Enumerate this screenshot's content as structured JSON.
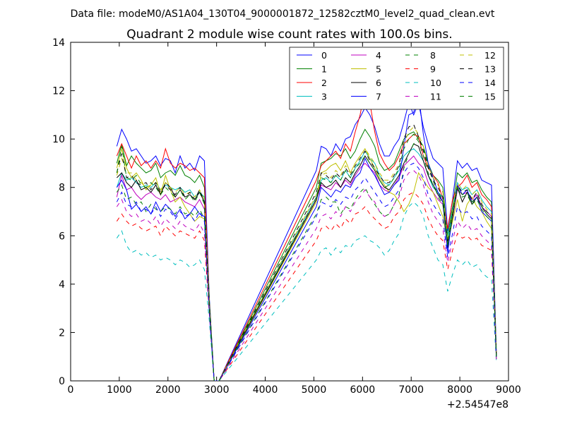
{
  "figure": {
    "suptitle": "Data file: modeM0/AS1A04_130T04_9000001872_12582cztM0_level2_quad_clean.evt"
  },
  "chart_data": {
    "type": "line",
    "title": "Quadrant 2 module wise count rates with 100.0s bins.",
    "xlabel": "",
    "ylabel": "",
    "x_offset_label": "+2.54547e8",
    "xlim": [
      0,
      9000
    ],
    "ylim": [
      0,
      14
    ],
    "x_ticks": [
      0,
      1000,
      2000,
      3000,
      4000,
      5000,
      6000,
      7000,
      8000,
      9000
    ],
    "y_ticks": [
      0,
      2,
      4,
      6,
      8,
      10,
      12,
      14
    ],
    "grid": false,
    "legend_placement": "top-right",
    "legend_columns": 4,
    "x": [
      950,
      1050,
      1150,
      1250,
      1350,
      1450,
      1550,
      1650,
      1750,
      1850,
      1950,
      2050,
      2150,
      2250,
      2350,
      2450,
      2550,
      2650,
      2750,
      2850,
      2950,
      3050,
      5050,
      5150,
      5250,
      5350,
      5450,
      5550,
      5650,
      5750,
      5850,
      5950,
      6050,
      6150,
      6250,
      6350,
      6450,
      6550,
      6650,
      6750,
      6850,
      6950,
      7050,
      7150,
      7250,
      7350,
      7450,
      7550,
      7650,
      7750,
      7850,
      7950,
      8050,
      8150,
      8250,
      8350,
      8450,
      8550,
      8650,
      8750
    ],
    "series": [
      {
        "name": "0",
        "color": "#0000ff",
        "dash": "solid",
        "values": [
          9.7,
          10.4,
          10.0,
          9.5,
          9.6,
          9.3,
          9.0,
          9.1,
          9.3,
          8.9,
          9.2,
          9.1,
          8.6,
          9.3,
          8.8,
          9.0,
          8.7,
          9.3,
          9.1,
          3.5,
          0.0,
          0.0,
          8.7,
          9.7,
          9.6,
          9.3,
          9.8,
          9.5,
          10.0,
          10.1,
          10.6,
          10.9,
          11.3,
          11.0,
          10.5,
          9.8,
          9.3,
          9.3,
          9.7,
          10.0,
          10.7,
          11.5,
          11.0,
          11.5,
          10.5,
          9.8,
          9.2,
          9.0,
          8.8,
          6.2,
          7.5,
          9.1,
          8.8,
          9.0,
          8.7,
          8.8,
          8.3,
          8.2,
          8.1,
          1.2
        ]
      },
      {
        "name": "1",
        "color": "#008000",
        "dash": "solid",
        "values": [
          9.0,
          9.8,
          8.9,
          9.3,
          9.0,
          8.8,
          8.6,
          8.7,
          9.0,
          8.4,
          8.6,
          8.7,
          8.5,
          8.9,
          8.5,
          8.4,
          8.2,
          8.5,
          8.0,
          3.4,
          0.0,
          0.0,
          8.0,
          9.0,
          9.1,
          9.2,
          9.4,
          9.3,
          9.6,
          9.2,
          9.5,
          10.0,
          10.4,
          10.1,
          9.7,
          9.0,
          8.7,
          8.8,
          9.0,
          9.5,
          10.0,
          10.2,
          10.3,
          10.0,
          9.7,
          9.0,
          8.5,
          8.3,
          8.0,
          6.0,
          7.2,
          8.6,
          8.4,
          8.6,
          8.2,
          8.3,
          7.9,
          7.6,
          7.4,
          1.1
        ]
      },
      {
        "name": "2",
        "color": "#ff0000",
        "dash": "solid",
        "values": [
          9.3,
          9.8,
          9.3,
          8.8,
          9.3,
          8.9,
          9.1,
          8.8,
          9.1,
          8.8,
          9.6,
          9.0,
          8.8,
          9.0,
          8.9,
          8.7,
          8.8,
          8.6,
          8.4,
          3.3,
          0.0,
          0.0,
          8.3,
          8.9,
          9.1,
          9.3,
          9.5,
          9.2,
          9.8,
          9.5,
          10.3,
          11.0,
          12.1,
          11.5,
          10.3,
          9.4,
          9.0,
          8.7,
          8.9,
          9.3,
          9.8,
          10.0,
          10.2,
          10.1,
          9.3,
          8.8,
          8.5,
          8.2,
          7.5,
          6.3,
          7.5,
          8.0,
          8.2,
          8.5,
          8.0,
          8.2,
          7.7,
          7.5,
          7.2,
          1.1
        ]
      },
      {
        "name": "3",
        "color": "#00bfbf",
        "dash": "solid",
        "values": [
          8.0,
          8.6,
          8.3,
          8.4,
          8.2,
          8.0,
          8.1,
          8.0,
          8.2,
          7.9,
          8.1,
          8.0,
          7.9,
          8.0,
          7.8,
          7.9,
          7.6,
          7.8,
          7.6,
          3.2,
          0.0,
          0.0,
          7.6,
          8.3,
          8.4,
          8.2,
          8.5,
          8.3,
          8.7,
          8.4,
          8.8,
          9.1,
          9.5,
          9.2,
          9.0,
          8.5,
          8.2,
          8.1,
          8.4,
          8.7,
          9.3,
          9.5,
          9.6,
          9.4,
          9.1,
          8.5,
          8.0,
          7.8,
          7.6,
          5.9,
          7.0,
          8.2,
          7.9,
          8.0,
          7.7,
          7.9,
          7.5,
          7.2,
          7.0,
          1.0
        ]
      },
      {
        "name": "4",
        "color": "#bf00bf",
        "dash": "solid",
        "values": [
          7.6,
          8.5,
          7.9,
          8.0,
          7.7,
          7.5,
          7.7,
          7.8,
          7.6,
          7.5,
          7.7,
          7.4,
          7.5,
          7.6,
          7.4,
          7.3,
          7.2,
          7.5,
          7.1,
          3.1,
          0.0,
          0.0,
          7.5,
          8.1,
          8.0,
          7.9,
          8.2,
          8.0,
          8.3,
          8.1,
          8.5,
          8.8,
          9.0,
          8.8,
          8.6,
          8.1,
          7.9,
          7.8,
          8.1,
          8.4,
          8.9,
          9.1,
          9.3,
          9.0,
          8.8,
          8.2,
          7.8,
          7.5,
          7.3,
          5.6,
          6.7,
          7.9,
          7.7,
          7.8,
          7.5,
          7.7,
          7.2,
          7.0,
          6.8,
          1.0
        ]
      },
      {
        "name": "5",
        "color": "#bfbf00",
        "dash": "solid",
        "values": [
          8.8,
          9.6,
          8.8,
          8.4,
          8.6,
          8.3,
          7.9,
          8.1,
          8.4,
          7.7,
          8.5,
          7.9,
          7.4,
          7.6,
          7.2,
          6.9,
          6.6,
          6.8,
          6.7,
          3.0,
          0.0,
          0.0,
          7.4,
          8.6,
          8.7,
          8.9,
          9.0,
          8.7,
          9.1,
          8.6,
          9.0,
          9.3,
          9.6,
          9.2,
          8.8,
          8.4,
          8.1,
          7.8,
          7.7,
          7.4,
          7.0,
          7.3,
          7.8,
          8.6,
          8.3,
          8.0,
          7.8,
          7.3,
          6.8,
          5.7,
          6.6,
          7.5,
          6.6,
          7.3,
          7.6,
          7.2,
          7.0,
          6.6,
          6.3,
          1.0
        ]
      },
      {
        "name": "6",
        "color": "#000000",
        "dash": "solid",
        "values": [
          8.4,
          8.6,
          8.2,
          8.0,
          8.3,
          7.9,
          8.0,
          7.8,
          8.1,
          7.7,
          8.2,
          8.0,
          7.6,
          7.9,
          7.6,
          7.7,
          7.5,
          7.8,
          7.4,
          3.2,
          0.0,
          0.0,
          7.5,
          8.2,
          8.0,
          8.1,
          8.3,
          8.0,
          8.4,
          8.2,
          8.6,
          8.9,
          9.3,
          9.0,
          8.7,
          8.3,
          8.0,
          7.9,
          8.2,
          8.5,
          9.0,
          9.4,
          9.8,
          9.7,
          9.1,
          8.5,
          8.1,
          7.7,
          7.4,
          5.5,
          6.8,
          8.0,
          7.4,
          7.8,
          7.3,
          7.6,
          7.2,
          6.9,
          6.7,
          1.0
        ]
      },
      {
        "name": "7",
        "color": "#0000ff",
        "dash": "solid",
        "values": [
          8.0,
          8.3,
          7.9,
          7.1,
          7.3,
          7.0,
          7.2,
          6.9,
          7.4,
          7.0,
          7.3,
          7.1,
          6.8,
          7.1,
          6.7,
          6.9,
          7.2,
          6.9,
          6.8,
          3.0,
          0.0,
          0.0,
          7.2,
          8.0,
          7.8,
          7.6,
          7.9,
          7.8,
          8.1,
          8.0,
          8.4,
          8.6,
          9.2,
          8.8,
          8.5,
          8.1,
          7.7,
          7.8,
          8.1,
          8.3,
          9.7,
          11.0,
          11.1,
          11.9,
          10.2,
          9.0,
          8.4,
          7.8,
          7.4,
          5.3,
          6.9,
          8.1,
          7.7,
          7.9,
          7.4,
          7.6,
          7.0,
          6.8,
          6.6,
          1.0
        ]
      },
      {
        "name": "8",
        "color": "#008000",
        "dash": "dashed",
        "values": [
          7.8,
          8.1,
          7.5,
          7.6,
          7.3,
          7.4,
          7.0,
          7.3,
          7.1,
          7.0,
          7.2,
          7.1,
          6.9,
          7.2,
          6.9,
          7.0,
          6.8,
          7.1,
          6.7,
          2.9,
          0.0,
          0.0,
          6.9,
          7.5,
          7.6,
          7.4,
          7.4,
          6.9,
          7.2,
          7.1,
          7.5,
          7.8,
          8.0,
          7.6,
          7.3,
          7.0,
          6.8,
          6.9,
          7.3,
          7.7,
          8.8,
          9.4,
          9.8,
          10.1,
          9.6,
          8.9,
          8.3,
          7.6,
          7.3,
          5.6,
          6.9,
          8.0,
          7.6,
          7.7,
          7.3,
          7.5,
          7.1,
          6.8,
          6.6,
          1.0
        ]
      },
      {
        "name": "9",
        "color": "#ff0000",
        "dash": "dashed",
        "values": [
          6.6,
          6.9,
          6.6,
          6.4,
          6.5,
          6.3,
          6.2,
          6.3,
          6.4,
          6.0,
          6.4,
          6.2,
          6.0,
          6.2,
          6.1,
          6.0,
          5.9,
          6.2,
          5.8,
          2.8,
          0.0,
          0.0,
          5.8,
          6.3,
          6.4,
          6.2,
          6.5,
          6.3,
          6.7,
          6.5,
          6.9,
          7.0,
          7.2,
          6.9,
          6.7,
          6.5,
          6.3,
          6.4,
          6.8,
          7.0,
          7.5,
          7.7,
          7.8,
          7.6,
          7.3,
          6.7,
          6.3,
          6.0,
          5.8,
          4.6,
          5.4,
          6.1,
          5.9,
          6.0,
          5.8,
          5.9,
          5.6,
          5.5,
          5.4,
          0.9
        ]
      },
      {
        "name": "10",
        "color": "#00bfbf",
        "dash": "dashed",
        "values": [
          5.9,
          6.2,
          5.6,
          5.3,
          5.4,
          5.2,
          5.3,
          5.1,
          5.2,
          5.0,
          5.1,
          5.0,
          4.8,
          5.0,
          4.9,
          4.7,
          4.8,
          5.0,
          4.6,
          2.5,
          0.0,
          0.0,
          5.0,
          5.4,
          5.5,
          5.2,
          5.5,
          5.3,
          5.6,
          5.5,
          5.8,
          5.9,
          6.0,
          5.8,
          5.7,
          5.5,
          5.2,
          5.4,
          5.8,
          6.1,
          6.8,
          7.2,
          7.4,
          7.2,
          6.8,
          6.0,
          5.5,
          5.0,
          4.8,
          3.7,
          4.4,
          5.0,
          4.8,
          5.0,
          4.7,
          4.8,
          4.5,
          4.3,
          4.2,
          0.8
        ]
      },
      {
        "name": "11",
        "color": "#bf00bf",
        "dash": "dashed",
        "values": [
          7.2,
          7.5,
          7.0,
          6.8,
          6.9,
          6.6,
          6.7,
          6.5,
          6.8,
          6.4,
          6.7,
          6.5,
          6.3,
          6.6,
          6.4,
          6.3,
          6.2,
          6.5,
          6.1,
          2.9,
          0.0,
          0.0,
          6.3,
          6.8,
          6.9,
          6.7,
          7.0,
          6.8,
          7.2,
          7.0,
          7.4,
          7.6,
          7.9,
          7.6,
          7.4,
          7.0,
          6.8,
          6.9,
          7.3,
          7.6,
          8.3,
          8.6,
          8.7,
          8.5,
          8.1,
          7.4,
          6.9,
          6.6,
          6.3,
          4.9,
          5.8,
          6.6,
          6.3,
          6.5,
          6.2,
          6.3,
          6.0,
          5.8,
          5.6,
          0.9
        ]
      },
      {
        "name": "12",
        "color": "#bfbf00",
        "dash": "dashed",
        "values": [
          8.5,
          9.2,
          8.6,
          8.6,
          8.3,
          8.2,
          8.0,
          8.1,
          8.2,
          7.9,
          8.2,
          8.0,
          7.8,
          8.0,
          7.7,
          7.8,
          7.6,
          7.9,
          7.5,
          3.2,
          0.0,
          0.0,
          7.7,
          8.5,
          8.6,
          8.4,
          8.7,
          8.5,
          8.9,
          8.6,
          9.0,
          9.3,
          9.6,
          9.3,
          9.0,
          8.6,
          8.3,
          8.3,
          8.6,
          9.0,
          9.8,
          10.3,
          10.5,
          10.2,
          9.7,
          8.9,
          8.4,
          8.1,
          7.8,
          5.8,
          7.0,
          8.2,
          7.9,
          8.1,
          7.7,
          7.9,
          7.4,
          7.1,
          6.9,
          1.1
        ]
      },
      {
        "name": "13",
        "color": "#000000",
        "dash": "dashed",
        "values": [
          8.6,
          9.4,
          8.4,
          8.5,
          8.2,
          8.1,
          8.2,
          7.9,
          8.2,
          7.8,
          8.1,
          7.9,
          7.7,
          8.0,
          7.6,
          7.8,
          7.5,
          7.9,
          7.4,
          3.1,
          0.0,
          0.0,
          7.8,
          8.6,
          8.5,
          8.3,
          8.6,
          8.4,
          8.8,
          8.5,
          8.9,
          9.2,
          9.5,
          9.1,
          8.8,
          8.5,
          8.2,
          8.2,
          8.5,
          8.9,
          10.0,
          10.5,
          10.6,
          10.1,
          9.5,
          8.8,
          8.3,
          8.0,
          7.6,
          5.7,
          6.9,
          8.1,
          7.8,
          7.9,
          7.5,
          7.8,
          7.3,
          7.0,
          6.8,
          1.0
        ]
      },
      {
        "name": "14",
        "color": "#0000ff",
        "dash": "dashed",
        "values": [
          7.4,
          7.8,
          7.3,
          7.2,
          7.4,
          7.0,
          7.1,
          6.9,
          7.2,
          6.8,
          7.1,
          7.0,
          6.7,
          7.0,
          6.8,
          6.9,
          6.6,
          7.0,
          6.6,
          2.9,
          0.0,
          0.0,
          6.8,
          7.4,
          7.3,
          7.2,
          7.5,
          7.3,
          7.6,
          7.5,
          7.9,
          8.1,
          8.4,
          8.1,
          7.8,
          7.5,
          7.2,
          7.3,
          7.6,
          7.9,
          8.6,
          8.9,
          9.0,
          8.8,
          8.4,
          7.7,
          7.3,
          7.0,
          6.7,
          5.1,
          6.1,
          7.2,
          6.9,
          7.0,
          6.7,
          6.8,
          6.4,
          6.2,
          6.0,
          1.0
        ]
      },
      {
        "name": "15",
        "color": "#008000",
        "dash": "dashed",
        "values": [
          8.6,
          9.7,
          8.4,
          8.3,
          8.5,
          8.1,
          8.0,
          8.2,
          8.0,
          7.7,
          8.0,
          7.8,
          7.6,
          7.9,
          7.5,
          7.7,
          7.4,
          7.8,
          7.3,
          3.1,
          0.0,
          0.0,
          7.6,
          8.4,
          8.3,
          8.2,
          8.5,
          8.3,
          8.7,
          8.4,
          8.8,
          9.0,
          9.3,
          9.0,
          8.7,
          8.3,
          8.0,
          8.1,
          8.4,
          8.8,
          9.6,
          10.0,
          10.2,
          9.9,
          9.3,
          8.6,
          8.1,
          7.8,
          7.5,
          5.6,
          6.8,
          8.0,
          7.7,
          7.8,
          7.4,
          7.6,
          7.2,
          6.9,
          6.7,
          1.0
        ]
      }
    ]
  }
}
